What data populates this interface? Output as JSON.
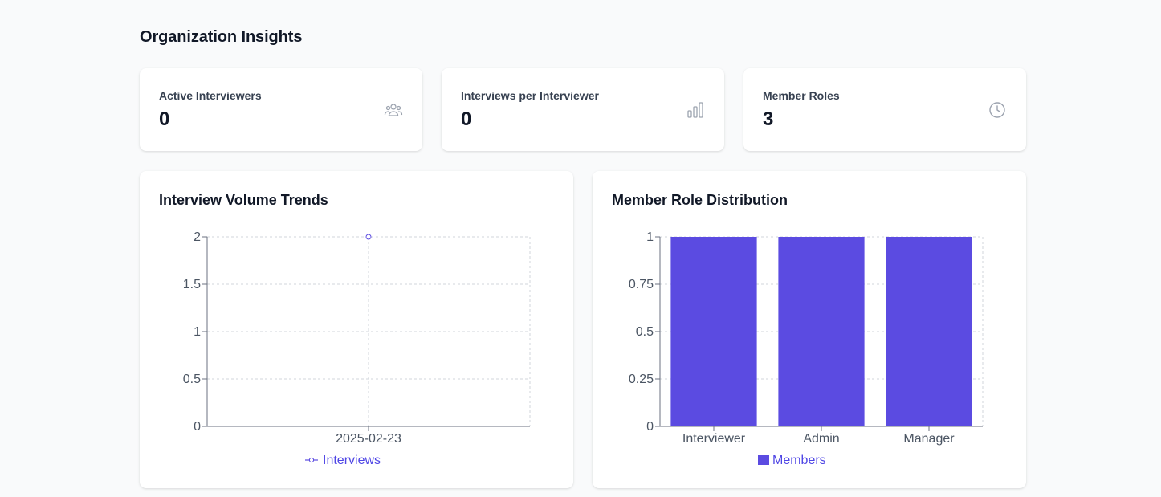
{
  "page": {
    "title": "Organization Insights"
  },
  "stats": [
    {
      "label": "Active Interviewers",
      "value": "0",
      "icon": "users-icon"
    },
    {
      "label": "Interviews per Interviewer",
      "value": "0",
      "icon": "bar-chart-icon"
    },
    {
      "label": "Member Roles",
      "value": "3",
      "icon": "clock-icon"
    }
  ],
  "colors": {
    "accent": "#5b4be1",
    "grid": "#d1d5db",
    "axis": "#6b7280",
    "icon": "#9ca3af"
  },
  "charts": {
    "volume": {
      "title": "Interview Volume Trends"
    },
    "roles": {
      "title": "Member Role Distribution"
    }
  },
  "chart_data": [
    {
      "type": "line",
      "title": "Interview Volume Trends",
      "x": [
        "2025-02-23"
      ],
      "series": [
        {
          "name": "Interviews",
          "values": [
            2
          ]
        }
      ],
      "ylim": [
        0,
        2
      ],
      "yticks": [
        "0",
        "0.5",
        "1",
        "1.5",
        "2"
      ],
      "ytick_values": [
        0,
        0.5,
        1,
        1.5,
        2
      ],
      "grid": true,
      "legend": "bottom"
    },
    {
      "type": "bar",
      "title": "Member Role Distribution",
      "categories": [
        "Interviewer",
        "Admin",
        "Manager"
      ],
      "series": [
        {
          "name": "Members",
          "values": [
            1,
            1,
            1
          ]
        }
      ],
      "ylim": [
        0,
        1
      ],
      "yticks": [
        "0",
        "0.25",
        "0.5",
        "0.75",
        "1"
      ],
      "ytick_values": [
        0,
        0.25,
        0.5,
        0.75,
        1
      ],
      "grid": true,
      "legend": "bottom"
    }
  ]
}
